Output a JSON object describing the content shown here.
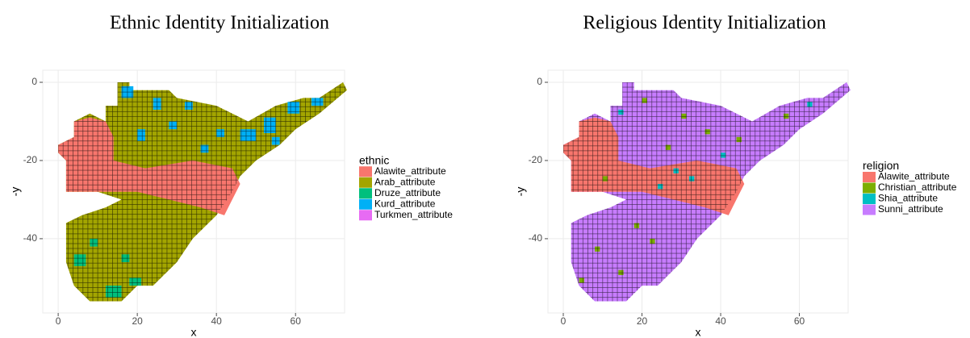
{
  "chart_data": [
    {
      "type": "tile",
      "title": "Ethnic Identity Initialization",
      "x_label": "x",
      "y_label": "-y",
      "xlim": [
        -3.9,
        72.4
      ],
      "ylim": [
        -59,
        3.1
      ],
      "xticks": [
        0,
        20,
        40,
        60
      ],
      "yticks": [
        0,
        -20,
        -40
      ],
      "grid": true,
      "legend_title": "ethnic",
      "legend_position": "right",
      "series": [
        {
          "name": "Alawite_attribute",
          "color": "#f8766d"
        },
        {
          "name": "Arab_attribute",
          "color": "#a3a500"
        },
        {
          "name": "Druze_attribute",
          "color": "#00bf7d"
        },
        {
          "name": "Kurd_attribute",
          "color": "#00b0f6"
        },
        {
          "name": "Turkmen_attribute",
          "color": "#e76bf3"
        }
      ]
    },
    {
      "type": "tile",
      "title": "Religious Identity Initialization",
      "x_label": "x",
      "y_label": "-y",
      "xlim": [
        -3.9,
        72.4
      ],
      "ylim": [
        -59,
        3.1
      ],
      "xticks": [
        0,
        20,
        40,
        60
      ],
      "yticks": [
        0,
        -20,
        -40
      ],
      "grid": true,
      "legend_title": "religion",
      "legend_position": "right",
      "series": [
        {
          "name": "Alawite_attribute",
          "color": "#f8766d"
        },
        {
          "name": "Christian_attribute",
          "color": "#7cae00"
        },
        {
          "name": "Shia_attribute",
          "color": "#00bfc4"
        },
        {
          "name": "Sunni_attribute",
          "color": "#c77cff"
        }
      ]
    }
  ]
}
